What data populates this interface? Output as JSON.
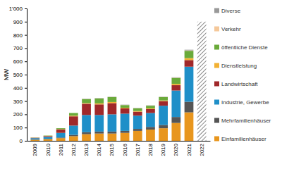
{
  "chart_data": {
    "type": "bar",
    "stacked": true,
    "grid": false,
    "legend": "right",
    "y_label": "MW",
    "categories": [
      "2009",
      "2010",
      "2011",
      "2012",
      "2013",
      "2014",
      "2015",
      "2016",
      "2017",
      "2018",
      "2019",
      "2020",
      "2021",
      "2022"
    ],
    "ylim": [
      0,
      1000
    ],
    "yticks": [
      0,
      100,
      200,
      300,
      400,
      500,
      600,
      700,
      800,
      900,
      {
        "value": 1000,
        "label": "1'000"
      }
    ],
    "series": [
      {
        "name": "Einfamilienhäuser",
        "color": "#e8961e",
        "values": [
          8,
          12,
          20,
          35,
          50,
          55,
          55,
          60,
          75,
          85,
          95,
          135,
          215,
          null
        ]
      },
      {
        "name": "Mehrfamilienhäuser",
        "color": "#555555",
        "values": [
          2,
          3,
          5,
          10,
          15,
          15,
          15,
          15,
          15,
          20,
          25,
          45,
          80,
          null
        ]
      },
      {
        "name": "Industrie, Gewerbe",
        "color": "#1f8fc8",
        "values": [
          10,
          15,
          35,
          70,
          130,
          125,
          130,
          130,
          100,
          105,
          145,
          200,
          265,
          null
        ]
      },
      {
        "name": "Landwirtschaft",
        "color": "#a0282a",
        "values": [
          3,
          6,
          25,
          70,
          85,
          80,
          85,
          40,
          30,
          30,
          35,
          40,
          50,
          null
        ]
      },
      {
        "name": "Dienstleistung",
        "color": "#f2b134",
        "values": [
          1,
          2,
          3,
          5,
          5,
          8,
          8,
          5,
          5,
          5,
          5,
          10,
          15,
          null
        ]
      },
      {
        "name": "öffentliche Dienste",
        "color": "#6aaa3a",
        "values": [
          1,
          2,
          7,
          20,
          30,
          37,
          37,
          20,
          20,
          20,
          25,
          45,
          55,
          null
        ]
      },
      {
        "name": "Verkehr",
        "color": "#f5c89a",
        "values": [
          0,
          0,
          0,
          0,
          1,
          1,
          1,
          1,
          1,
          1,
          1,
          2,
          3,
          null
        ]
      },
      {
        "name": "Diverse",
        "color": "#999999",
        "values": [
          0,
          0,
          0,
          0,
          2,
          2,
          2,
          2,
          2,
          2,
          2,
          3,
          5,
          null
        ]
      },
      {
        "color": "#888888",
        "values": [
          null,
          null,
          null,
          null,
          null,
          null,
          null,
          null,
          null,
          null,
          null,
          null,
          null,
          900
        ]
      }
    ]
  }
}
